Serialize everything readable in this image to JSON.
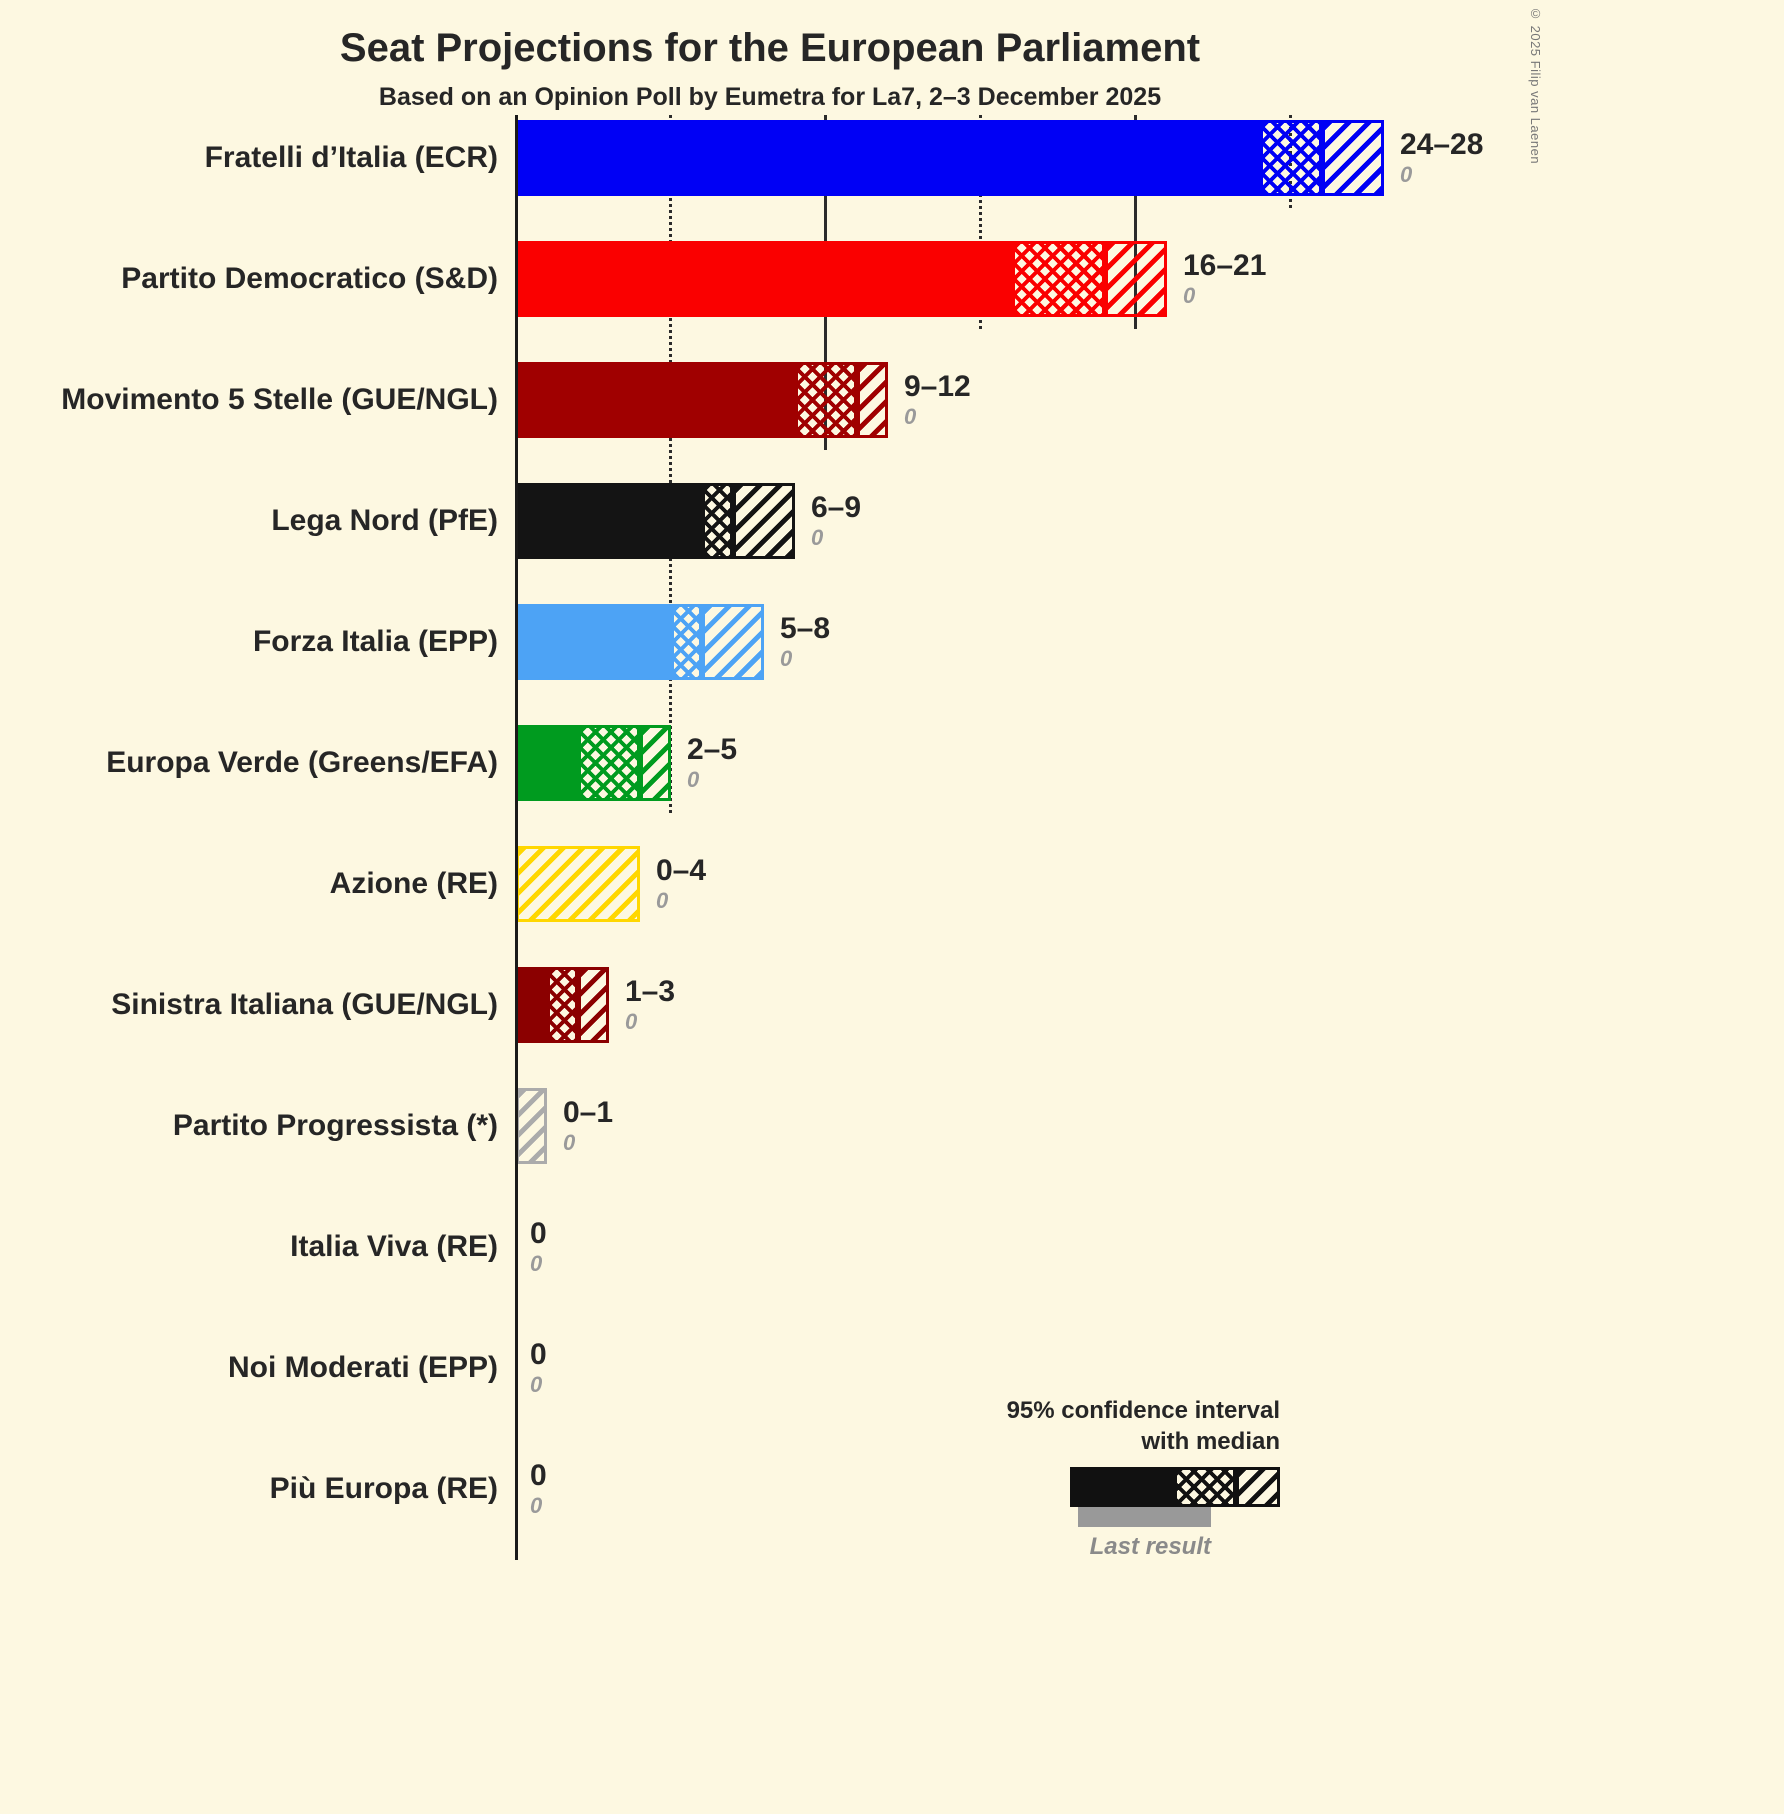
{
  "title": "Seat Projections for the European Parliament",
  "subtitle": "Based on an Opinion Poll by Eumetra for La7, 2–3 December 2025",
  "copyright": "© 2025 Filip van Laenen",
  "colors": {
    "background": "#FDF8E1",
    "axis": "#1a1a1a",
    "last_result_text": "#9a9a9a",
    "legend_bar": "#111111",
    "legend_last_bar": "#999999"
  },
  "legend": {
    "ci_line1": "95% confidence interval",
    "ci_line2": "with median",
    "last_result": "Last result"
  },
  "chart_data": {
    "type": "bar",
    "orientation": "horizontal",
    "x_max": 28,
    "gridlines": {
      "minor_dotted": [
        5,
        15,
        25
      ],
      "major_solid": [
        10,
        20
      ]
    },
    "note": "Each bar: solid = up to lower bound of 95% CI, crosshatch = lower bound to median, diagonal = median to upper bound; gray italic number below = last result",
    "parties": [
      {
        "label": "Fratelli d’Italia (ECR)",
        "low": 24,
        "median": 26,
        "high": 28,
        "range_label": "24–28",
        "last_result": 0,
        "last_result_label": "0",
        "color": "#0000F5"
      },
      {
        "label": "Partito Democratico (S&D)",
        "low": 16,
        "median": 19,
        "high": 21,
        "range_label": "16–21",
        "last_result": 0,
        "last_result_label": "0",
        "color": "#FA0000"
      },
      {
        "label": "Movimento 5 Stelle (GUE/NGL)",
        "low": 9,
        "median": 11,
        "high": 12,
        "range_label": "9–12",
        "last_result": 0,
        "last_result_label": "0",
        "color": "#A00000"
      },
      {
        "label": "Lega Nord (PfE)",
        "low": 6,
        "median": 7,
        "high": 9,
        "range_label": "6–9",
        "last_result": 0,
        "last_result_label": "0",
        "color": "#141414"
      },
      {
        "label": "Forza Italia (EPP)",
        "low": 5,
        "median": 6,
        "high": 8,
        "range_label": "5–8",
        "last_result": 0,
        "last_result_label": "0",
        "color": "#4DA3F5"
      },
      {
        "label": "Europa Verde (Greens/EFA)",
        "low": 2,
        "median": 4,
        "high": 5,
        "range_label": "2–5",
        "last_result": 0,
        "last_result_label": "0",
        "color": "#009B1F"
      },
      {
        "label": "Azione (RE)",
        "low": 0,
        "median": 0,
        "high": 4,
        "range_label": "0–4",
        "last_result": 0,
        "last_result_label": "0",
        "color": "#FFD700"
      },
      {
        "label": "Sinistra Italiana (GUE/NGL)",
        "low": 1,
        "median": 2,
        "high": 3,
        "range_label": "1–3",
        "last_result": 0,
        "last_result_label": "0",
        "color": "#8B0000"
      },
      {
        "label": "Partito Progressista (*)",
        "low": 0,
        "median": 0,
        "high": 1,
        "range_label": "0–1",
        "last_result": 0,
        "last_result_label": "0",
        "color": "#ABABAB"
      },
      {
        "label": "Italia Viva (RE)",
        "low": 0,
        "median": 0,
        "high": 0,
        "range_label": "0",
        "last_result": 0,
        "last_result_label": "0",
        "color": "#262626"
      },
      {
        "label": "Noi Moderati (EPP)",
        "low": 0,
        "median": 0,
        "high": 0,
        "range_label": "0",
        "last_result": 0,
        "last_result_label": "0",
        "color": "#262626"
      },
      {
        "label": "Più Europa (RE)",
        "low": 0,
        "median": 0,
        "high": 0,
        "range_label": "0",
        "last_result": 0,
        "last_result_label": "0",
        "color": "#262626"
      }
    ]
  }
}
